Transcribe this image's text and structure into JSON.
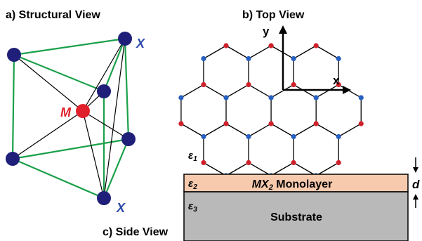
{
  "panels": {
    "a": {
      "title": "a) Structural View",
      "label_M": "M",
      "label_X_top": "X",
      "label_X_bottom": "X"
    },
    "b": {
      "title": "b) Top View",
      "axis_x": "x",
      "axis_y": "y"
    },
    "c": {
      "title": "c) Side View",
      "eps1": "ε1",
      "eps2": "ε2",
      "eps3": "ε3",
      "eps1_base": "ε",
      "eps1_sub": "1",
      "eps2_base": "ε",
      "eps2_sub": "2",
      "eps3_base": "ε",
      "eps3_sub": "3",
      "monolayer_text": "MX2 Monolayer",
      "monolayer_base": "MX",
      "monolayer_sub": "2",
      "monolayer_rest": " Monolayer",
      "substrate_text": "Substrate",
      "thickness_label": "d"
    }
  },
  "colors": {
    "metal": "#e0202a",
    "chalcogen": "#1f1f7a",
    "lattice_blue": "#2860c0",
    "lattice_red": "#d0202a",
    "bond_green": "#1aa04a",
    "monolayer_fill": "#f7c9ad",
    "substrate_fill": "#b9b9b9"
  }
}
